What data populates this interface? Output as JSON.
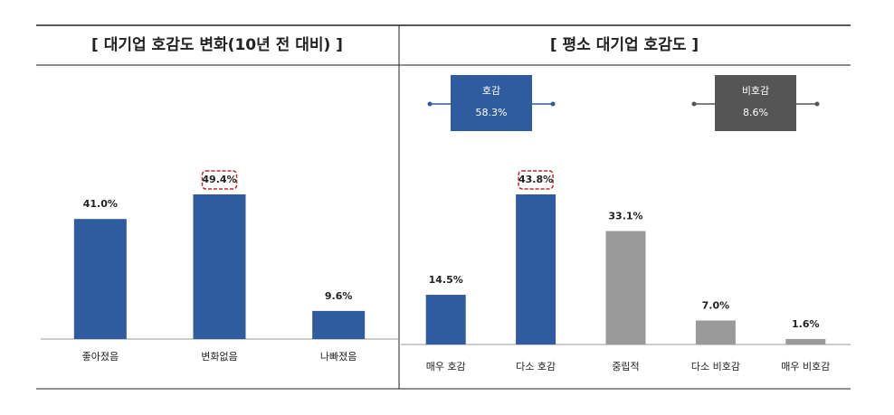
{
  "chart_data": [
    {
      "type": "bar",
      "title": "[ 대기업 호감도 변화(10년 전 대비) ]",
      "categories": [
        "좋아졌음",
        "변화없음",
        "나빠졌음"
      ],
      "values": [
        41.0,
        49.4,
        9.6
      ],
      "value_labels": [
        "41.0%",
        "49.4%",
        "9.6%"
      ],
      "colors": [
        "#2e5c9e",
        "#2e5c9e",
        "#2e5c9e"
      ],
      "highlight": 1
    },
    {
      "type": "bar",
      "title": "[ 평소 대기업 호감도 ]",
      "categories": [
        "매우 호감",
        "다소 호감",
        "중립적",
        "다소 비호감",
        "매우 비호감"
      ],
      "values": [
        14.5,
        43.8,
        33.1,
        7.0,
        1.6
      ],
      "value_labels": [
        "14.5%",
        "43.8%",
        "33.1%",
        "7.0%",
        "1.6%"
      ],
      "colors": [
        "#2e5c9e",
        "#2e5c9e",
        "#9a9a9a",
        "#9a9a9a",
        "#9a9a9a"
      ],
      "highlight": 1,
      "annotations": [
        {
          "label": "호감",
          "value": "58.3%",
          "color": "#2e5c9e"
        },
        {
          "label": "비호감",
          "value": "8.6%",
          "color": "#555555"
        }
      ]
    }
  ]
}
